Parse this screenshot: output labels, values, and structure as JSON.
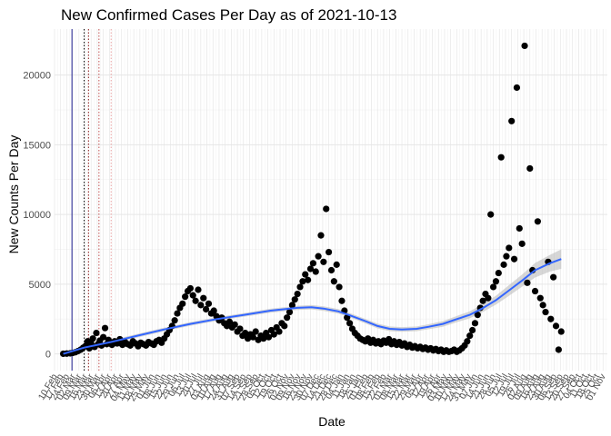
{
  "chart_data": {
    "type": "scatter",
    "title": "New Confirmed Cases Per Day as of 2021-10-13",
    "xlabel": "Date",
    "ylabel": "New Counts Per Day",
    "xlim": [
      "2020-02-10",
      "2021-11-06"
    ],
    "ylim": [
      -1200,
      23300
    ],
    "yticks": [
      0,
      5000,
      10000,
      15000,
      20000
    ],
    "grid": true,
    "legend": "none",
    "xtick_labels": [
      "10 Feb",
      "17 Feb",
      "24 Feb",
      "02 Mar",
      "09 Mar",
      "16 Mar",
      "23 Mar",
      "30 Mar",
      "06 Apr",
      "13 Apr",
      "20 Apr",
      "27 Apr",
      "04 May",
      "11 May",
      "18 May",
      "25 May",
      "01 Jun",
      "08 Jun",
      "15 Jun",
      "22 Jun",
      "29 Jun",
      "06 Jul",
      "13 Jul",
      "20 Jul",
      "27 Jul",
      "03 Aug",
      "10 Aug",
      "17 Aug",
      "24 Aug",
      "31 Aug",
      "07 Sep",
      "14 Sep",
      "21 Sep",
      "28 Sep",
      "05 Oct",
      "12 Oct",
      "19 Oct",
      "26 Oct",
      "02 Nov",
      "09 Nov",
      "16 Nov",
      "23 Nov",
      "30 Nov",
      "07 Dec",
      "14 Dec",
      "21 Dec",
      "28 Dec",
      "04 Jan",
      "11 Jan",
      "18 Jan",
      "25 Jan",
      "01 Feb",
      "08 Feb",
      "15 Feb",
      "22 Feb",
      "01 Mar",
      "08 Mar",
      "15 Mar",
      "22 Mar",
      "29 Mar",
      "05 Apr",
      "12 Apr",
      "19 Apr",
      "26 Apr",
      "03 May",
      "10 May",
      "17 May",
      "24 May",
      "31 May",
      "07 Jun",
      "14 Jun",
      "21 Jun",
      "28 Jun",
      "05 Jul",
      "12 Jul",
      "19 Jul",
      "26 Jul",
      "02 Aug",
      "09 Aug",
      "16 Aug",
      "23 Aug",
      "30 Aug",
      "06 Sep",
      "13 Sep",
      "20 Sep",
      "27 Sep",
      "04 Oct",
      "11 Oct",
      "18 Oct",
      "25 Oct",
      "01 Nov"
    ],
    "vertical_lines": [
      {
        "x": "2020-03-01",
        "color": "#1f1f8f",
        "style": "solid"
      },
      {
        "x": "2020-03-15",
        "color": "#000000",
        "style": "dotted"
      },
      {
        "x": "2020-03-20",
        "color": "#8b1a1a",
        "style": "dotted"
      },
      {
        "x": "2020-04-01",
        "color": "#c05050",
        "style": "dotted"
      },
      {
        "x": "2020-04-15",
        "color": "#e8a0a0",
        "style": "dotted"
      }
    ],
    "colors": {
      "points": "#000000",
      "smooth": "#3366ff",
      "band": "#bdbdbd",
      "grid": "#e6e6e6"
    },
    "series": [
      {
        "type": "scatter",
        "points": [
          [
            "2020-02-20",
            10
          ],
          [
            "2020-02-24",
            20
          ],
          [
            "2020-02-28",
            40
          ],
          [
            "2020-03-02",
            70
          ],
          [
            "2020-03-05",
            120
          ],
          [
            "2020-03-08",
            200
          ],
          [
            "2020-03-11",
            300
          ],
          [
            "2020-03-14",
            450
          ],
          [
            "2020-03-17",
            600
          ],
          [
            "2020-03-19",
            900
          ],
          [
            "2020-03-21",
            400
          ],
          [
            "2020-03-23",
            750
          ],
          [
            "2020-03-25",
            1100
          ],
          [
            "2020-03-27",
            500
          ],
          [
            "2020-03-29",
            1500
          ],
          [
            "2020-03-31",
            700
          ],
          [
            "2020-04-02",
            950
          ],
          [
            "2020-04-04",
            600
          ],
          [
            "2020-04-06",
            1200
          ],
          [
            "2020-04-08",
            1850
          ],
          [
            "2020-04-10",
            700
          ],
          [
            "2020-04-12",
            1000
          ],
          [
            "2020-04-14",
            800
          ],
          [
            "2020-04-16",
            650
          ],
          [
            "2020-04-19",
            900
          ],
          [
            "2020-04-22",
            750
          ],
          [
            "2020-04-25",
            1050
          ],
          [
            "2020-04-28",
            650
          ],
          [
            "2020-05-01",
            850
          ],
          [
            "2020-05-04",
            700
          ],
          [
            "2020-05-07",
            600
          ],
          [
            "2020-05-10",
            900
          ],
          [
            "2020-05-13",
            750
          ],
          [
            "2020-05-16",
            550
          ],
          [
            "2020-05-19",
            800
          ],
          [
            "2020-05-22",
            700
          ],
          [
            "2020-05-25",
            600
          ],
          [
            "2020-05-28",
            850
          ],
          [
            "2020-05-31",
            750
          ],
          [
            "2020-06-03",
            650
          ],
          [
            "2020-06-06",
            900
          ],
          [
            "2020-06-09",
            1000
          ],
          [
            "2020-06-12",
            800
          ],
          [
            "2020-06-15",
            1100
          ],
          [
            "2020-06-18",
            1400
          ],
          [
            "2020-06-21",
            1700
          ],
          [
            "2020-06-24",
            2000
          ],
          [
            "2020-06-27",
            2400
          ],
          [
            "2020-06-30",
            2900
          ],
          [
            "2020-07-03",
            3300
          ],
          [
            "2020-07-06",
            3600
          ],
          [
            "2020-07-09",
            4100
          ],
          [
            "2020-07-12",
            4500
          ],
          [
            "2020-07-15",
            4700
          ],
          [
            "2020-07-18",
            4200
          ],
          [
            "2020-07-21",
            3800
          ],
          [
            "2020-07-24",
            4600
          ],
          [
            "2020-07-27",
            3500
          ],
          [
            "2020-07-30",
            4000
          ],
          [
            "2020-08-02",
            3200
          ],
          [
            "2020-08-05",
            3600
          ],
          [
            "2020-08-08",
            2900
          ],
          [
            "2020-08-11",
            3100
          ],
          [
            "2020-08-14",
            2700
          ],
          [
            "2020-08-17",
            2400
          ],
          [
            "2020-08-20",
            2600
          ],
          [
            "2020-08-23",
            2200
          ],
          [
            "2020-08-26",
            2000
          ],
          [
            "2020-08-29",
            2300
          ],
          [
            "2020-09-01",
            1900
          ],
          [
            "2020-09-04",
            2100
          ],
          [
            "2020-09-07",
            1600
          ],
          [
            "2020-09-10",
            1800
          ],
          [
            "2020-09-13",
            1300
          ],
          [
            "2020-09-16",
            1500
          ],
          [
            "2020-09-19",
            1100
          ],
          [
            "2020-09-22",
            1400
          ],
          [
            "2020-09-25",
            1200
          ],
          [
            "2020-09-28",
            1600
          ],
          [
            "2020-10-01",
            1000
          ],
          [
            "2020-10-04",
            1300
          ],
          [
            "2020-10-07",
            1100
          ],
          [
            "2020-10-10",
            1500
          ],
          [
            "2020-10-13",
            1200
          ],
          [
            "2020-10-16",
            1700
          ],
          [
            "2020-10-19",
            1400
          ],
          [
            "2020-10-22",
            1900
          ],
          [
            "2020-10-25",
            1600
          ],
          [
            "2020-10-28",
            2200
          ],
          [
            "2020-10-31",
            2000
          ],
          [
            "2020-11-03",
            2600
          ],
          [
            "2020-11-06",
            3000
          ],
          [
            "2020-11-09",
            3500
          ],
          [
            "2020-11-12",
            3900
          ],
          [
            "2020-11-15",
            4300
          ],
          [
            "2020-11-18",
            4800
          ],
          [
            "2020-11-21",
            5200
          ],
          [
            "2020-11-24",
            5700
          ],
          [
            "2020-11-27",
            5300
          ],
          [
            "2020-11-30",
            6100
          ],
          [
            "2020-12-03",
            6500
          ],
          [
            "2020-12-06",
            5900
          ],
          [
            "2020-12-09",
            7000
          ],
          [
            "2020-12-12",
            8500
          ],
          [
            "2020-12-15",
            6600
          ],
          [
            "2020-12-18",
            10400
          ],
          [
            "2020-12-21",
            7300
          ],
          [
            "2020-12-24",
            6000
          ],
          [
            "2020-12-27",
            5200
          ],
          [
            "2020-12-30",
            6400
          ],
          [
            "2021-01-02",
            4800
          ],
          [
            "2021-01-05",
            3800
          ],
          [
            "2021-01-08",
            3100
          ],
          [
            "2021-01-11",
            2600
          ],
          [
            "2021-01-14",
            2200
          ],
          [
            "2021-01-17",
            1800
          ],
          [
            "2021-01-20",
            1500
          ],
          [
            "2021-01-23",
            1300
          ],
          [
            "2021-01-26",
            1100
          ],
          [
            "2021-01-29",
            1000
          ],
          [
            "2021-02-01",
            900
          ],
          [
            "2021-02-04",
            1100
          ],
          [
            "2021-02-07",
            800
          ],
          [
            "2021-02-10",
            1000
          ],
          [
            "2021-02-13",
            750
          ],
          [
            "2021-02-16",
            900
          ],
          [
            "2021-02-19",
            700
          ],
          [
            "2021-02-22",
            950
          ],
          [
            "2021-02-25",
            800
          ],
          [
            "2021-02-28",
            1050
          ],
          [
            "2021-03-03",
            700
          ],
          [
            "2021-03-06",
            900
          ],
          [
            "2021-03-09",
            650
          ],
          [
            "2021-03-12",
            850
          ],
          [
            "2021-03-15",
            600
          ],
          [
            "2021-03-18",
            750
          ],
          [
            "2021-03-21",
            500
          ],
          [
            "2021-03-24",
            650
          ],
          [
            "2021-03-27",
            450
          ],
          [
            "2021-03-30",
            550
          ],
          [
            "2021-04-02",
            400
          ],
          [
            "2021-04-05",
            500
          ],
          [
            "2021-04-08",
            350
          ],
          [
            "2021-04-11",
            450
          ],
          [
            "2021-04-14",
            300
          ],
          [
            "2021-04-17",
            400
          ],
          [
            "2021-04-20",
            250
          ],
          [
            "2021-04-23",
            350
          ],
          [
            "2021-04-26",
            200
          ],
          [
            "2021-04-29",
            300
          ],
          [
            "2021-05-02",
            150
          ],
          [
            "2021-05-05",
            250
          ],
          [
            "2021-05-08",
            150
          ],
          [
            "2021-05-11",
            200
          ],
          [
            "2021-05-14",
            300
          ],
          [
            "2021-05-17",
            150
          ],
          [
            "2021-05-20",
            250
          ],
          [
            "2021-05-23",
            400
          ],
          [
            "2021-05-26",
            600
          ],
          [
            "2021-05-29",
            900
          ],
          [
            "2021-06-01",
            1300
          ],
          [
            "2021-06-04",
            1700
          ],
          [
            "2021-06-07",
            2200
          ],
          [
            "2021-06-10",
            2800
          ],
          [
            "2021-06-13",
            3300
          ],
          [
            "2021-06-16",
            3800
          ],
          [
            "2021-06-19",
            4300
          ],
          [
            "2021-06-22",
            4000
          ],
          [
            "2021-06-25",
            10000
          ],
          [
            "2021-06-28",
            4800
          ],
          [
            "2021-07-01",
            5200
          ],
          [
            "2021-07-04",
            5800
          ],
          [
            "2021-07-07",
            14100
          ],
          [
            "2021-07-10",
            6400
          ],
          [
            "2021-07-13",
            7000
          ],
          [
            "2021-07-16",
            7600
          ],
          [
            "2021-07-19",
            16700
          ],
          [
            "2021-07-22",
            6800
          ],
          [
            "2021-07-25",
            19100
          ],
          [
            "2021-07-28",
            9000
          ],
          [
            "2021-07-31",
            7900
          ],
          [
            "2021-08-03",
            22100
          ],
          [
            "2021-08-06",
            5100
          ],
          [
            "2021-08-09",
            13300
          ],
          [
            "2021-08-12",
            6000
          ],
          [
            "2021-08-15",
            4500
          ],
          [
            "2021-08-18",
            9500
          ],
          [
            "2021-08-21",
            4000
          ],
          [
            "2021-08-24",
            3500
          ],
          [
            "2021-08-27",
            3000
          ],
          [
            "2021-08-30",
            6600
          ],
          [
            "2021-09-02",
            2500
          ],
          [
            "2021-09-05",
            5500
          ],
          [
            "2021-09-08",
            2000
          ],
          [
            "2021-09-11",
            300
          ],
          [
            "2021-09-14",
            1600
          ]
        ]
      },
      {
        "type": "smooth",
        "line": [
          [
            "2020-02-20",
            0
          ],
          [
            "2020-03-15",
            450
          ],
          [
            "2020-04-15",
            850
          ],
          [
            "2020-05-15",
            1300
          ],
          [
            "2020-06-15",
            1750
          ],
          [
            "2020-07-15",
            2150
          ],
          [
            "2020-08-15",
            2500
          ],
          [
            "2020-09-15",
            2800
          ],
          [
            "2020-10-15",
            3100
          ],
          [
            "2020-11-15",
            3300
          ],
          [
            "2020-12-01",
            3350
          ],
          [
            "2020-12-15",
            3250
          ],
          [
            "2021-01-01",
            3050
          ],
          [
            "2021-01-15",
            2750
          ],
          [
            "2021-02-01",
            2350
          ],
          [
            "2021-02-15",
            2000
          ],
          [
            "2021-03-01",
            1800
          ],
          [
            "2021-03-15",
            1750
          ],
          [
            "2021-04-01",
            1800
          ],
          [
            "2021-04-15",
            1950
          ],
          [
            "2021-05-01",
            2150
          ],
          [
            "2021-05-15",
            2450
          ],
          [
            "2021-06-01",
            2800
          ],
          [
            "2021-06-15",
            3250
          ],
          [
            "2021-07-01",
            3850
          ],
          [
            "2021-07-15",
            4500
          ],
          [
            "2021-08-01",
            5300
          ],
          [
            "2021-08-15",
            6000
          ],
          [
            "2021-09-01",
            6500
          ],
          [
            "2021-09-14",
            6800
          ]
        ],
        "band_halfwidth": [
          60,
          120,
          130,
          130,
          130,
          130,
          130,
          130,
          140,
          150,
          160,
          160,
          160,
          160,
          160,
          170,
          170,
          170,
          170,
          180,
          200,
          220,
          250,
          280,
          320,
          380,
          440,
          520,
          600,
          700
        ]
      }
    ]
  }
}
